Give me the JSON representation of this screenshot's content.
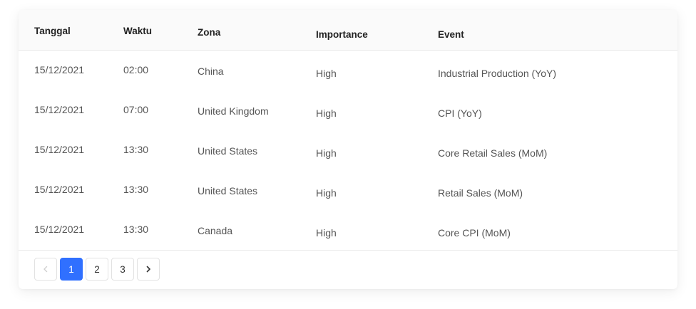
{
  "table": {
    "columns": [
      "Tanggal",
      "Waktu",
      "Zona",
      "Importance",
      "Event"
    ],
    "rows": [
      [
        "15/12/2021",
        "02:00",
        "China",
        "High",
        "Industrial Production (YoY)"
      ],
      [
        "15/12/2021",
        "07:00",
        "United Kingdom",
        "High",
        "CPI (YoY)"
      ],
      [
        "15/12/2021",
        "13:30",
        "United States",
        "High",
        "Core Retail Sales (MoM)"
      ],
      [
        "15/12/2021",
        "13:30",
        "United States",
        "High",
        "Retail Sales (MoM)"
      ],
      [
        "15/12/2021",
        "13:30",
        "Canada",
        "High",
        "Core CPI (MoM)"
      ]
    ]
  },
  "pagination": {
    "prev_icon": "chevron-left-icon",
    "next_icon": "chevron-right-icon",
    "pages": [
      "1",
      "2",
      "3"
    ],
    "current_page": "1"
  },
  "colors": {
    "accent": "#3070ff",
    "header_bg": "#fafafa",
    "border": "#e8e8e8"
  }
}
